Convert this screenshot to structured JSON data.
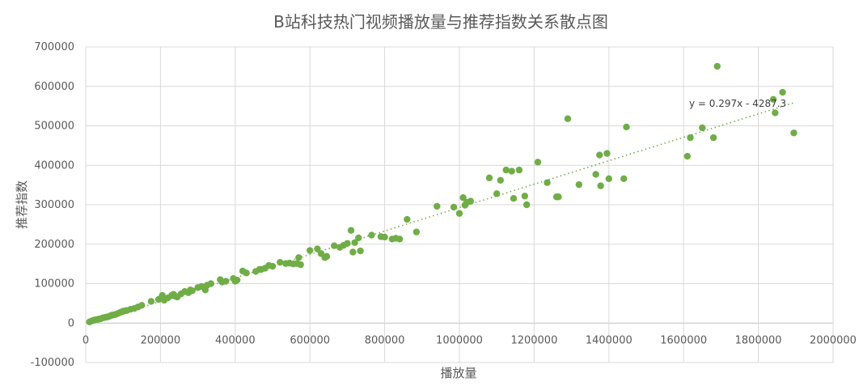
{
  "chart_data": {
    "type": "scatter",
    "title": "B站科技热门视频播放量与推荐指数关系散点图",
    "xlabel": "播放量",
    "ylabel": "推荐指数",
    "xlim": [
      0,
      2000000
    ],
    "ylim": [
      -100000,
      700000
    ],
    "x_ticks": [
      0,
      200000,
      400000,
      600000,
      800000,
      1000000,
      1200000,
      1400000,
      1600000,
      1800000,
      2000000
    ],
    "y_ticks": [
      -100000,
      0,
      100000,
      200000,
      300000,
      400000,
      500000,
      600000,
      700000
    ],
    "x_tick_labels": [
      "0",
      "200000",
      "400000",
      "600000",
      "800000",
      "1000000",
      "1200000",
      "1400000",
      "1600000",
      "1800000",
      "2000000"
    ],
    "y_tick_labels": [
      "-100000",
      "0",
      "100000",
      "200000",
      "300000",
      "400000",
      "500000",
      "600000",
      "700000"
    ],
    "grid": true,
    "legend": "none",
    "marker_color": "#70ad47",
    "trendline": {
      "type": "linear",
      "slope": 0.297,
      "intercept": -4287.3,
      "label": "y = 0.297x - 4287.3",
      "color": "#70ad47"
    },
    "series": [
      {
        "points": [
          [
            10000,
            3000
          ],
          [
            15000,
            5000
          ],
          [
            20000,
            7000
          ],
          [
            25000,
            8000
          ],
          [
            30000,
            9000
          ],
          [
            35000,
            10000
          ],
          [
            40000,
            11000
          ],
          [
            45000,
            13000
          ],
          [
            50000,
            14000
          ],
          [
            55000,
            15000
          ],
          [
            60000,
            16000
          ],
          [
            65000,
            18000
          ],
          [
            70000,
            20000
          ],
          [
            75000,
            21000
          ],
          [
            80000,
            22000
          ],
          [
            85000,
            24000
          ],
          [
            90000,
            26000
          ],
          [
            95000,
            28000
          ],
          [
            100000,
            30000
          ],
          [
            105000,
            31000
          ],
          [
            110000,
            32000
          ],
          [
            120000,
            35000
          ],
          [
            130000,
            37000
          ],
          [
            140000,
            41000
          ],
          [
            150000,
            45000
          ],
          [
            175000,
            55000
          ],
          [
            195000,
            60000
          ],
          [
            200000,
            62000
          ],
          [
            205000,
            70000
          ],
          [
            210000,
            58000
          ],
          [
            220000,
            64000
          ],
          [
            230000,
            70000
          ],
          [
            235000,
            73000
          ],
          [
            240000,
            68000
          ],
          [
            245000,
            66000
          ],
          [
            255000,
            74000
          ],
          [
            265000,
            80000
          ],
          [
            275000,
            77000
          ],
          [
            280000,
            84000
          ],
          [
            285000,
            82000
          ],
          [
            300000,
            90000
          ],
          [
            310000,
            93000
          ],
          [
            320000,
            84000
          ],
          [
            325000,
            96000
          ],
          [
            335000,
            100000
          ],
          [
            360000,
            110000
          ],
          [
            365000,
            104000
          ],
          [
            375000,
            106000
          ],
          [
            395000,
            113000
          ],
          [
            400000,
            106000
          ],
          [
            405000,
            109000
          ],
          [
            420000,
            132000
          ],
          [
            430000,
            127000
          ],
          [
            455000,
            131000
          ],
          [
            465000,
            136000
          ],
          [
            470000,
            136000
          ],
          [
            480000,
            139000
          ],
          [
            490000,
            146000
          ],
          [
            500000,
            144000
          ],
          [
            520000,
            154000
          ],
          [
            535000,
            151000
          ],
          [
            545000,
            152000
          ],
          [
            555000,
            150000
          ],
          [
            565000,
            151000
          ],
          [
            570000,
            166000
          ],
          [
            575000,
            148000
          ],
          [
            600000,
            184000
          ],
          [
            620000,
            188000
          ],
          [
            630000,
            176000
          ],
          [
            640000,
            166000
          ],
          [
            645000,
            169000
          ],
          [
            665000,
            196000
          ],
          [
            680000,
            192000
          ],
          [
            690000,
            197000
          ],
          [
            700000,
            202000
          ],
          [
            710000,
            235000
          ],
          [
            715000,
            180000
          ],
          [
            720000,
            204000
          ],
          [
            730000,
            216000
          ],
          [
            735000,
            183000
          ],
          [
            765000,
            223000
          ],
          [
            790000,
            219000
          ],
          [
            800000,
            218000
          ],
          [
            820000,
            213000
          ],
          [
            830000,
            215000
          ],
          [
            840000,
            213000
          ],
          [
            860000,
            263000
          ],
          [
            885000,
            231000
          ],
          [
            940000,
            296000
          ],
          [
            985000,
            294000
          ],
          [
            1000000,
            278000
          ],
          [
            1010000,
            318000
          ],
          [
            1015000,
            299000
          ],
          [
            1020000,
            306000
          ],
          [
            1030000,
            309000
          ],
          [
            1080000,
            368000
          ],
          [
            1100000,
            328000
          ],
          [
            1110000,
            362000
          ],
          [
            1125000,
            388000
          ],
          [
            1140000,
            385000
          ],
          [
            1145000,
            316000
          ],
          [
            1160000,
            388000
          ],
          [
            1175000,
            322000
          ],
          [
            1180000,
            300000
          ],
          [
            1210000,
            408000
          ],
          [
            1235000,
            356000
          ],
          [
            1260000,
            320000
          ],
          [
            1265000,
            320000
          ],
          [
            1290000,
            518000
          ],
          [
            1320000,
            351000
          ],
          [
            1365000,
            377000
          ],
          [
            1375000,
            426000
          ],
          [
            1378000,
            348000
          ],
          [
            1395000,
            430000
          ],
          [
            1400000,
            366000
          ],
          [
            1440000,
            366000
          ],
          [
            1447000,
            497000
          ],
          [
            1610000,
            423000
          ],
          [
            1618000,
            470000
          ],
          [
            1650000,
            495000
          ],
          [
            1680000,
            470000
          ],
          [
            1690000,
            651000
          ],
          [
            1840000,
            567000
          ],
          [
            1845000,
            533000
          ],
          [
            1865000,
            585000
          ],
          [
            1895000,
            482000
          ]
        ]
      }
    ]
  }
}
